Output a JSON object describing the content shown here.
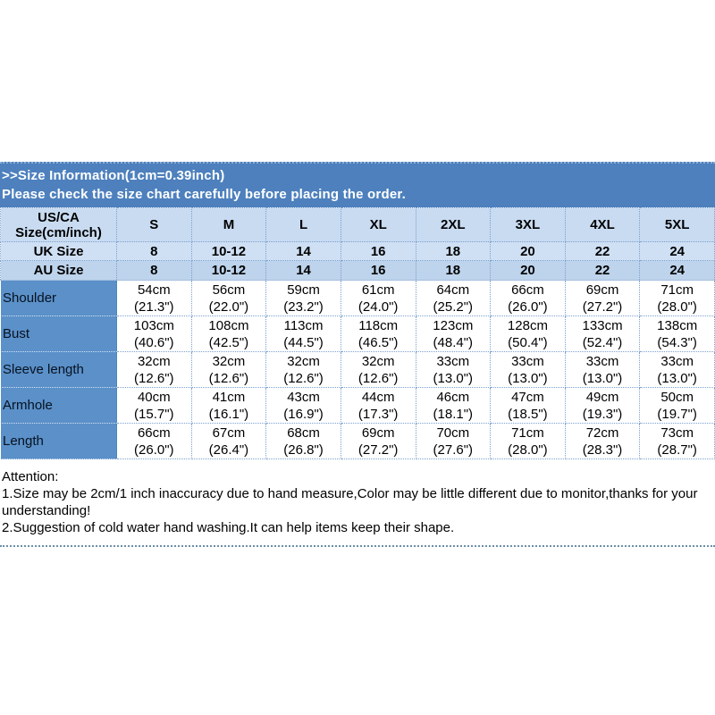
{
  "banner": {
    "line1": ">>Size Information(1cm=0.39inch)",
    "line2": "Please check the size chart carefully before placing the order."
  },
  "header": {
    "corner1": "US/CA",
    "corner2": "Size(cm/inch)",
    "sizes": [
      "S",
      "M",
      "L",
      "XL",
      "2XL",
      "3XL",
      "4XL",
      "5XL"
    ]
  },
  "uk": {
    "label": "UK Size",
    "values": [
      "8",
      "10-12",
      "14",
      "16",
      "18",
      "20",
      "22",
      "24"
    ]
  },
  "au": {
    "label": "AU Size",
    "values": [
      "8",
      "10-12",
      "14",
      "16",
      "18",
      "20",
      "22",
      "24"
    ]
  },
  "rows": [
    {
      "label": "Shoulder",
      "cm": [
        "54cm",
        "56cm",
        "59cm",
        "61cm",
        "64cm",
        "66cm",
        "69cm",
        "71cm"
      ],
      "inch": [
        "(21.3\")",
        "(22.0\")",
        "(23.2\")",
        "(24.0\")",
        "(25.2\")",
        "(26.0\")",
        "(27.2\")",
        "(28.0\")"
      ]
    },
    {
      "label": "Bust",
      "cm": [
        "103cm",
        "108cm",
        "113cm",
        "118cm",
        "123cm",
        "128cm",
        "133cm",
        "138cm"
      ],
      "inch": [
        "(40.6\")",
        "(42.5\")",
        "(44.5\")",
        "(46.5\")",
        "(48.4\")",
        "(50.4\")",
        "(52.4\")",
        "(54.3\")"
      ]
    },
    {
      "label": "Sleeve length",
      "cm": [
        "32cm",
        "32cm",
        "32cm",
        "32cm",
        "33cm",
        "33cm",
        "33cm",
        "33cm"
      ],
      "inch": [
        "(12.6\")",
        "(12.6\")",
        "(12.6\")",
        "(12.6\")",
        "(13.0\")",
        "(13.0\")",
        "(13.0\")",
        "(13.0\")"
      ]
    },
    {
      "label": "Armhole",
      "cm": [
        "40cm",
        "41cm",
        "43cm",
        "44cm",
        "46cm",
        "47cm",
        "49cm",
        "50cm"
      ],
      "inch": [
        "(15.7\")",
        "(16.1\")",
        "(16.9\")",
        "(17.3\")",
        "(18.1\")",
        "(18.5\")",
        "(19.3\")",
        "(19.7\")"
      ]
    },
    {
      "label": "Length",
      "cm": [
        "66cm",
        "67cm",
        "68cm",
        "69cm",
        "70cm",
        "71cm",
        "72cm",
        "73cm"
      ],
      "inch": [
        "(26.0\")",
        "(26.4\")",
        "(26.8\")",
        "(27.2\")",
        "(27.6\")",
        "(28.0\")",
        "(28.3\")",
        "(28.7\")"
      ]
    }
  ],
  "attention": {
    "title": "Attention:",
    "note1": "1.Size may be 2cm/1 inch inaccuracy due to hand measure,Color may be little different due to monitor,thanks for your understanding!",
    "note2": "2.Suggestion of cold water hand washing.It can help items keep their shape."
  },
  "colors": {
    "banner_blue": "#4d80bd",
    "label_cell_blue": "#5b90c9",
    "header_row_blue": "#c8dbf1",
    "uk_row_blue": "#cfe0f4",
    "au_row_blue": "#bed4ec",
    "grid_dotted": "#7ba1cf"
  }
}
